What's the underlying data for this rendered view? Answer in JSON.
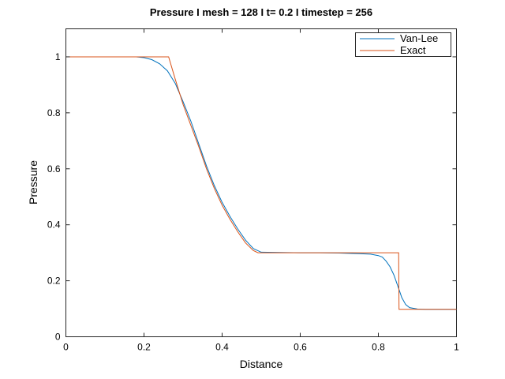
{
  "chart_data": {
    "type": "line",
    "title": "Pressure I mesh = 128 I t= 0.2 I timestep = 256",
    "xlabel": "Distance",
    "ylabel": "Pressure",
    "xlim": [
      0,
      1
    ],
    "ylim": [
      0,
      1.1
    ],
    "xticks": [
      0,
      0.2,
      0.4,
      0.6,
      0.8,
      1
    ],
    "xtick_labels": [
      "0",
      "0.2",
      "0.4",
      "0.6",
      "0.8",
      "1"
    ],
    "yticks": [
      0,
      0.2,
      0.4,
      0.6,
      0.8,
      1
    ],
    "ytick_labels": [
      "0",
      "0.2",
      "0.4",
      "0.6",
      "0.8",
      "1"
    ],
    "grid": false,
    "legend_position": "top-right",
    "series": [
      {
        "name": "Van-Lee",
        "color": "#0072BD",
        "x": [
          0,
          0.18,
          0.2,
          0.22,
          0.24,
          0.26,
          0.28,
          0.3,
          0.32,
          0.34,
          0.36,
          0.38,
          0.4,
          0.42,
          0.44,
          0.46,
          0.48,
          0.5,
          0.55,
          0.6,
          0.65,
          0.7,
          0.75,
          0.78,
          0.8,
          0.81,
          0.82,
          0.83,
          0.84,
          0.85,
          0.86,
          0.87,
          0.88,
          0.9,
          0.92,
          1
        ],
        "y": [
          1,
          1,
          0.997,
          0.99,
          0.975,
          0.95,
          0.905,
          0.84,
          0.77,
          0.69,
          0.61,
          0.54,
          0.48,
          0.43,
          0.385,
          0.345,
          0.315,
          0.302,
          0.301,
          0.3,
          0.3,
          0.299,
          0.297,
          0.295,
          0.29,
          0.285,
          0.27,
          0.25,
          0.22,
          0.18,
          0.14,
          0.115,
          0.104,
          0.099,
          0.098,
          0.098
        ]
      },
      {
        "name": "Exact",
        "color": "#D95319",
        "x": [
          0,
          0.263,
          0.28,
          0.3,
          0.32,
          0.34,
          0.36,
          0.38,
          0.4,
          0.42,
          0.44,
          0.46,
          0.48,
          0.492,
          0.5,
          0.6,
          0.7,
          0.8,
          0.852,
          0.853,
          1
        ],
        "y": [
          1,
          1,
          0.92,
          0.83,
          0.755,
          0.68,
          0.6,
          0.53,
          0.47,
          0.42,
          0.375,
          0.335,
          0.308,
          0.3,
          0.3,
          0.3,
          0.3,
          0.3,
          0.3,
          0.098,
          0.098
        ]
      }
    ]
  }
}
